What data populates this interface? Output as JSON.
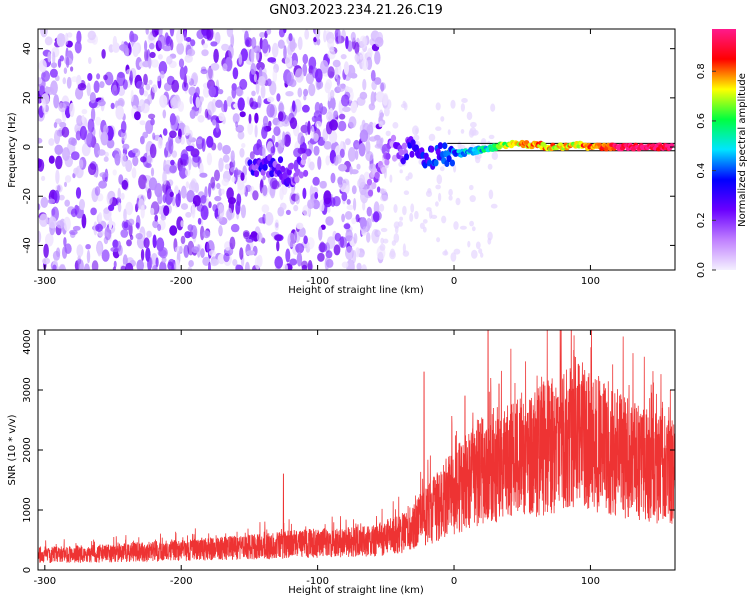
{
  "title": "GN03.2023.234.21.26.C19",
  "chart_data": [
    {
      "type": "heatmap",
      "xlabel": "Height of straight line (km)",
      "ylabel": "Frequency (Hz)",
      "xlim": [
        -305,
        162
      ],
      "ylim": [
        -50,
        48
      ],
      "x_ticks": [
        -300,
        -200,
        -100,
        0,
        100
      ],
      "y_ticks": [
        -40,
        -20,
        0,
        20,
        40
      ],
      "colorbar": {
        "label": "Normalized spectral amplitude",
        "range": [
          0,
          0.97
        ],
        "ticks": [
          "0.0",
          "0.2",
          "0.4",
          "0.6",
          "0.8"
        ],
        "colors": [
          "#f4f0ff",
          "#c080ff",
          "#6a00ff",
          "#0000ff",
          "#00e5ff",
          "#00ff40",
          "#ffff00",
          "#ff0000",
          "#ff1a8c"
        ]
      },
      "signal_track": [
        {
          "x": -150,
          "y": -7,
          "amp": 0.25
        },
        {
          "x": -140,
          "y": -8,
          "amp": 0.25
        },
        {
          "x": -130,
          "y": -8,
          "amp": 0.22
        },
        {
          "x": -120,
          "y": -12,
          "amp": 0.22
        },
        {
          "x": -110,
          "y": -7,
          "amp": 0.15
        },
        {
          "x": -60,
          "y": -15,
          "amp": 0.1
        },
        {
          "x": -50,
          "y": -5,
          "amp": 0.12
        },
        {
          "x": -45,
          "y": 0,
          "amp": 0.15
        },
        {
          "x": -40,
          "y": -3,
          "amp": 0.2
        },
        {
          "x": -30,
          "y": 0,
          "amp": 0.28
        },
        {
          "x": -20,
          "y": -5,
          "amp": 0.3
        },
        {
          "x": -10,
          "y": -3,
          "amp": 0.35
        },
        {
          "x": 0,
          "y": -3,
          "amp": 0.4
        },
        {
          "x": 10,
          "y": -2,
          "amp": 0.45
        },
        {
          "x": 20,
          "y": -1,
          "amp": 0.5
        },
        {
          "x": 30,
          "y": 0,
          "amp": 0.6
        },
        {
          "x": 40,
          "y": 1,
          "amp": 0.7
        },
        {
          "x": 50,
          "y": 1,
          "amp": 0.75
        },
        {
          "x": 60,
          "y": 1,
          "amp": 0.8
        },
        {
          "x": 70,
          "y": 0,
          "amp": 0.75
        },
        {
          "x": 80,
          "y": 0,
          "amp": 0.7
        },
        {
          "x": 90,
          "y": 1,
          "amp": 0.75
        },
        {
          "x": 100,
          "y": 0,
          "amp": 0.8
        },
        {
          "x": 110,
          "y": 0,
          "amp": 0.85
        },
        {
          "x": 120,
          "y": 0,
          "amp": 0.9
        },
        {
          "x": 130,
          "y": 0,
          "amp": 0.92
        },
        {
          "x": 140,
          "y": 0,
          "amp": 0.95
        },
        {
          "x": 150,
          "y": 0,
          "amp": 0.95
        },
        {
          "x": 160,
          "y": 0,
          "amp": 0.95
        }
      ],
      "noise_region": {
        "x_from": -305,
        "x_to": -55,
        "amp": 0.15
      }
    },
    {
      "type": "line",
      "xlabel": "Height of straight line (km)",
      "ylabel": "SNR (10 * v/v)",
      "xlim": [
        -305,
        162
      ],
      "ylim": [
        0,
        4000
      ],
      "x_ticks": [
        -300,
        -200,
        -100,
        0,
        100
      ],
      "y_ticks": [
        0,
        1000,
        2000,
        3000,
        4000
      ],
      "color": "#ee3333",
      "envelope": {
        "x": [
          -305,
          -250,
          -200,
          -150,
          -100,
          -60,
          -40,
          -20,
          0,
          20,
          40,
          60,
          80,
          90,
          100,
          120,
          140,
          162
        ],
        "y": [
          250,
          280,
          330,
          380,
          450,
          480,
          600,
          900,
          1300,
          1650,
          1800,
          1950,
          2150,
          2350,
          2150,
          1950,
          1750,
          1600
        ]
      },
      "spikes": [
        {
          "x": -125,
          "y": 1600
        },
        {
          "x": -22,
          "y": 3300
        },
        {
          "x": 8,
          "y": 2900
        },
        {
          "x": 25,
          "y": 4100
        },
        {
          "x": 33,
          "y": 3100
        },
        {
          "x": 95,
          "y": 3250
        }
      ]
    }
  ]
}
